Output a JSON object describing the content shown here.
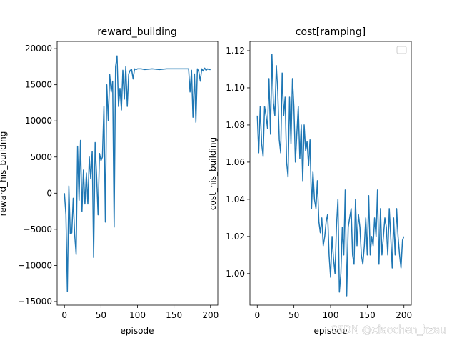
{
  "chart_data": [
    {
      "type": "line",
      "title": "reward_building",
      "xlabel": "episode",
      "ylabel": "reward_his_building",
      "xlim": [
        -10,
        210
      ],
      "ylim": [
        -15500,
        21000
      ],
      "xticks": [
        0,
        50,
        100,
        150,
        200
      ],
      "yticks": [
        -15000,
        -10000,
        -5000,
        0,
        5000,
        10000,
        15000,
        20000
      ],
      "xtick_labels": [
        "0",
        "50",
        "100",
        "150",
        "200"
      ],
      "ytick_labels": [
        "−15000",
        "−10000",
        "−5000",
        "0",
        "5000",
        "10000",
        "15000",
        "20000"
      ],
      "grid": false,
      "series": [
        {
          "color": "#1f77b4",
          "x": [
            0,
            2,
            4,
            6,
            8,
            10,
            12,
            14,
            16,
            18,
            20,
            22,
            24,
            26,
            28,
            30,
            32,
            34,
            36,
            38,
            40,
            42,
            44,
            46,
            48,
            50,
            52,
            54,
            56,
            58,
            60,
            62,
            64,
            66,
            68,
            70,
            72,
            74,
            76,
            78,
            80,
            82,
            84,
            86,
            88,
            90,
            92,
            94,
            96,
            98,
            100,
            105,
            110,
            120,
            130,
            140,
            150,
            160,
            170,
            172,
            174,
            176,
            178,
            180,
            182,
            184,
            186,
            188,
            190,
            192,
            194,
            196,
            198,
            200
          ],
          "values": [
            0,
            -3000,
            -13600,
            1000,
            -5600,
            -5500,
            -700,
            -5700,
            -8500,
            6500,
            -1000,
            7300,
            -2500,
            3200,
            -1500,
            2800,
            -1500,
            5000,
            2000,
            5800,
            -8900,
            7000,
            2500,
            -3000,
            5500,
            4500,
            5000,
            12000,
            -4000,
            15000,
            10000,
            16400,
            14000,
            15500,
            -4700,
            17500,
            19000,
            12000,
            14500,
            11500,
            17000,
            13000,
            17500,
            12000,
            16500,
            17000,
            17100,
            15800,
            17200,
            17100,
            17200,
            17200,
            17100,
            17200,
            17100,
            17200,
            17200,
            17200,
            17200,
            14000,
            17000,
            10500,
            16500,
            9800,
            17200,
            16800,
            15500,
            17200,
            16900,
            17300,
            17000,
            17200,
            17100,
            17100
          ]
        }
      ]
    },
    {
      "type": "line",
      "title": "cost[ramping]",
      "xlabel": "episode",
      "ylabel": "cost_his_building",
      "xlim": [
        -10,
        210
      ],
      "ylim": [
        0.983,
        1.125
      ],
      "xticks": [
        0,
        50,
        100,
        150,
        200
      ],
      "yticks": [
        1.0,
        1.02,
        1.04,
        1.06,
        1.08,
        1.1,
        1.12
      ],
      "xtick_labels": [
        "0",
        "50",
        "100",
        "150",
        "200"
      ],
      "ytick_labels": [
        "1.00",
        "1.02",
        "1.04",
        "1.06",
        "1.08",
        "1.10",
        "1.12"
      ],
      "grid": false,
      "legend": "top-right",
      "series": [
        {
          "color": "#1f77b4",
          "x": [
            0,
            2,
            4,
            6,
            8,
            10,
            12,
            14,
            16,
            18,
            20,
            22,
            24,
            26,
            28,
            30,
            32,
            34,
            36,
            38,
            40,
            42,
            44,
            46,
            48,
            50,
            52,
            54,
            56,
            58,
            60,
            62,
            64,
            66,
            68,
            70,
            72,
            74,
            76,
            78,
            80,
            82,
            84,
            86,
            88,
            90,
            92,
            94,
            96,
            98,
            100,
            102,
            104,
            106,
            108,
            110,
            112,
            114,
            116,
            118,
            120,
            122,
            124,
            126,
            128,
            130,
            132,
            134,
            136,
            138,
            140,
            142,
            144,
            146,
            148,
            150,
            152,
            154,
            156,
            158,
            160,
            162,
            164,
            166,
            168,
            170,
            172,
            174,
            176,
            178,
            180,
            182,
            184,
            186,
            188,
            190,
            192,
            194,
            196,
            198,
            200
          ],
          "values": [
            1.085,
            1.065,
            1.09,
            1.07,
            1.063,
            1.09,
            1.085,
            1.078,
            1.105,
            1.075,
            1.118,
            1.092,
            1.085,
            1.112,
            1.098,
            1.072,
            1.065,
            1.108,
            1.085,
            1.095,
            1.06,
            1.052,
            1.095,
            1.07,
            1.105,
            1.09,
            1.06,
            1.075,
            1.09,
            1.062,
            1.08,
            1.05,
            1.08,
            1.066,
            1.071,
            1.058,
            1.072,
            1.035,
            1.055,
            1.04,
            1.035,
            1.05,
            1.028,
            1.022,
            1.03,
            1.015,
            1.02,
            1.028,
            1.032,
            1.01,
            0.998,
            1.02,
            1.008,
            1.0,
            1.025,
            1.04,
            0.99,
            1.0,
            1.025,
            1.01,
            1.045,
            0.988,
            1.025,
            1.03,
            1.035,
            1.01,
            1.005,
            1.04,
            1.015,
            1.032,
            1.025,
            1.01,
            1.005,
            1.015,
            1.03,
            1.01,
            1.042,
            1.01,
            1.02,
            1.015,
            1.03,
            1.02,
            1.045,
            1.005,
            1.035,
            1.01,
            1.02,
            1.03,
            1.025,
            1.01,
            1.035,
            1.02,
            1.003,
            1.03,
            1.01,
            1.035,
            1.02,
            1.01,
            1.003,
            1.018,
            1.02
          ]
        }
      ]
    }
  ],
  "watermark": "CSDN @xiaochen_hzau"
}
